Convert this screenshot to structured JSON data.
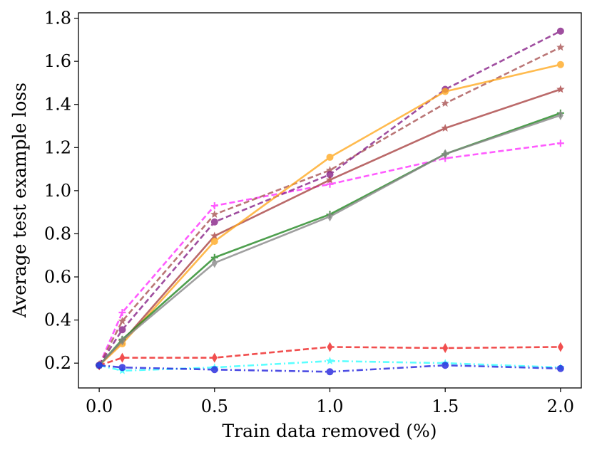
{
  "chart_data": {
    "type": "line",
    "title": "",
    "xlabel": "Train data removed (%)",
    "ylabel": "Average test example loss",
    "xlim": [
      -0.09,
      2.09
    ],
    "ylim": [
      0.085,
      1.825
    ],
    "xticks": [
      0.0,
      0.5,
      1.0,
      1.5,
      2.0
    ],
    "xtick_labels": [
      "0.0",
      "0.5",
      "1.0",
      "1.5",
      "2.0"
    ],
    "yticks": [
      0.2,
      0.4,
      0.6,
      0.8,
      1.0,
      1.2,
      1.4,
      1.6,
      1.8
    ],
    "ytick_labels": [
      "0.2",
      "0.4",
      "0.6",
      "0.8",
      "1.0",
      "1.2",
      "1.4",
      "1.6",
      "1.8"
    ],
    "grid": false,
    "legend": "none",
    "x": [
      0.0,
      0.1,
      0.5,
      1.0,
      1.5,
      2.0
    ],
    "series": [
      {
        "id": "magenta-dashed",
        "color": "#ff33ff",
        "dash": "dashed",
        "marker": "plus",
        "values": [
          0.19,
          0.435,
          0.93,
          1.03,
          1.15,
          1.22
        ]
      },
      {
        "id": "brown-dashed",
        "color": "#aa5555",
        "dash": "dashed",
        "marker": "star",
        "values": [
          0.19,
          0.395,
          0.89,
          1.095,
          1.405,
          1.665
        ]
      },
      {
        "id": "purple-dashed",
        "color": "#882288",
        "dash": "dashed",
        "marker": "circle",
        "values": [
          0.19,
          0.355,
          0.855,
          1.075,
          1.47,
          1.74
        ]
      },
      {
        "id": "brown-solid",
        "color": "#aa4444",
        "dash": "solid",
        "marker": "star",
        "values": [
          0.19,
          0.3,
          0.79,
          1.05,
          1.29,
          1.47
        ]
      },
      {
        "id": "orange-solid",
        "color": "#ffaa22",
        "dash": "solid",
        "marker": "circle",
        "values": [
          0.19,
          0.29,
          0.765,
          1.155,
          1.46,
          1.585
        ]
      },
      {
        "id": "green-solid",
        "color": "#228822",
        "dash": "solid",
        "marker": "plus",
        "values": [
          0.19,
          0.31,
          0.69,
          0.89,
          1.17,
          1.36
        ]
      },
      {
        "id": "gray-solid",
        "color": "#888888",
        "dash": "solid",
        "marker": "thin-diamond",
        "values": [
          0.19,
          0.305,
          0.665,
          0.88,
          1.17,
          1.35
        ]
      },
      {
        "id": "red-dashed",
        "color": "#ee2222",
        "dash": "dashed",
        "marker": "thin-diamond",
        "values": [
          0.19,
          0.225,
          0.225,
          0.275,
          0.27,
          0.275
        ]
      },
      {
        "id": "cyan-dashdot",
        "color": "#33ffff",
        "dash": "dashdot",
        "marker": "star",
        "values": [
          0.19,
          0.165,
          0.18,
          0.21,
          0.2,
          0.18
        ]
      },
      {
        "id": "blue-dashdot",
        "color": "#2222dd",
        "dash": "dashdot",
        "marker": "circle",
        "values": [
          0.19,
          0.18,
          0.17,
          0.16,
          0.19,
          0.175
        ]
      }
    ]
  }
}
